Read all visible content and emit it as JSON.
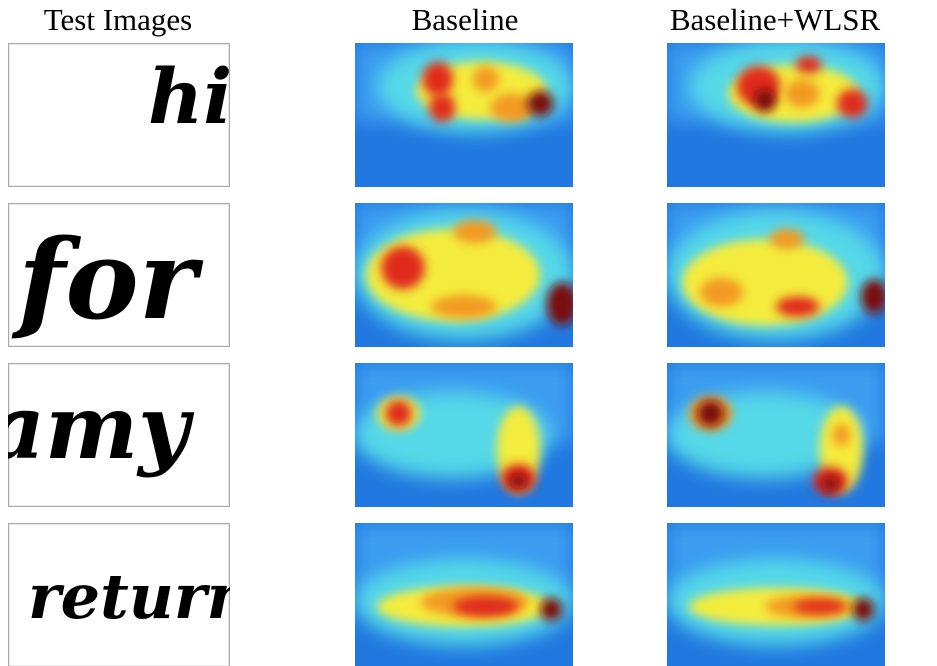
{
  "headers": [
    "Test Images",
    "Baseline",
    "Baseline+WLSR"
  ],
  "rows": [
    {
      "word": "his"
    },
    {
      "word": "for"
    },
    {
      "word": "amy"
    },
    {
      "word": "return"
    }
  ]
}
